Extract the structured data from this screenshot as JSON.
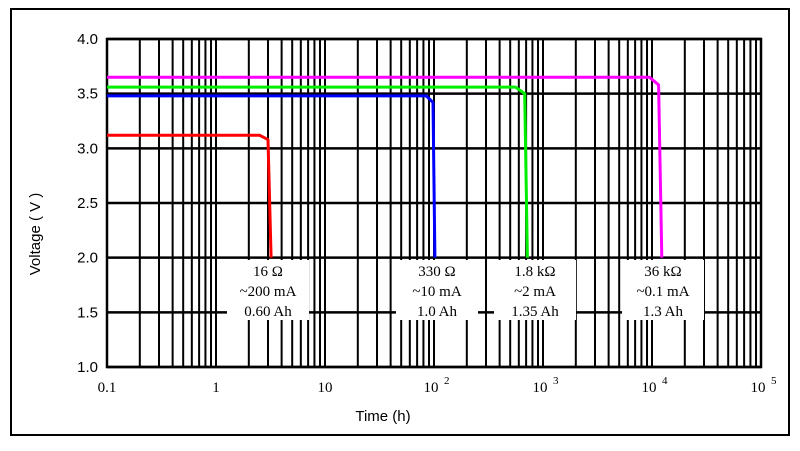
{
  "chart_data": {
    "type": "line",
    "title": "",
    "xlabel": "Time (h)",
    "ylabel": "Voltage ( V )",
    "x_scale": "log",
    "xlim": [
      0.1,
      100000
    ],
    "ylim": [
      1.0,
      4.0
    ],
    "y_ticks": [
      "1.0",
      "1.5",
      "2.0",
      "2.5",
      "3.0",
      "3.5",
      "4.0"
    ],
    "x_ticks": [
      {
        "base": "0.1",
        "exp": ""
      },
      {
        "base": "1",
        "exp": ""
      },
      {
        "base": "10",
        "exp": ""
      },
      {
        "base": "10",
        "exp": "2"
      },
      {
        "base": "10",
        "exp": "3"
      },
      {
        "base": "10",
        "exp": "4"
      },
      {
        "base": "10",
        "exp": "5"
      }
    ],
    "grid": true,
    "legend": "none",
    "series": [
      {
        "color": "#ff0000",
        "points": [
          [
            0.1,
            3.12
          ],
          [
            2.5,
            3.12
          ],
          [
            3.0,
            3.08
          ],
          [
            3.2,
            2.0
          ]
        ]
      },
      {
        "color": "#0000ff",
        "points": [
          [
            0.1,
            3.48
          ],
          [
            85,
            3.48
          ],
          [
            98,
            3.42
          ],
          [
            102,
            2.0
          ]
        ]
      },
      {
        "color": "#00ee00",
        "points": [
          [
            0.1,
            3.56
          ],
          [
            560,
            3.56
          ],
          [
            680,
            3.5
          ],
          [
            720,
            2.0
          ]
        ]
      },
      {
        "color": "#ff00ff",
        "points": [
          [
            0.1,
            3.65
          ],
          [
            9500,
            3.65
          ],
          [
            11500,
            3.58
          ],
          [
            12300,
            2.0
          ]
        ]
      }
    ],
    "annotations": [
      {
        "lines": [
          "16 Ω",
          "~200 mA",
          "0.60 Ah"
        ]
      },
      {
        "lines": [
          "330 Ω",
          "~10 mA",
          "1.0 Ah"
        ]
      },
      {
        "lines": [
          "1.8 kΩ",
          "~2 mA",
          "1.35 Ah"
        ]
      },
      {
        "lines": [
          "36 kΩ",
          "~0.1 mA",
          "1.3 Ah"
        ]
      }
    ]
  }
}
